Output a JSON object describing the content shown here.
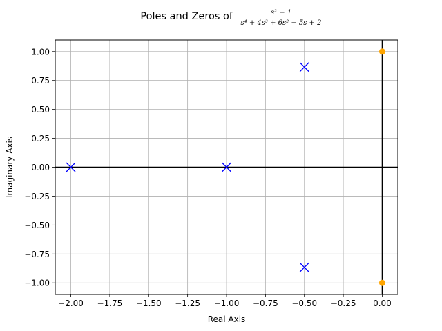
{
  "chart_data": {
    "type": "scatter",
    "title": {
      "prefix": "Poles and Zeros of",
      "numerator": "s² + 1",
      "denominator": "s⁴ + 4s³ + 6s² + 5s + 2"
    },
    "xlabel": "Real Axis",
    "ylabel": "Imaginary Axis",
    "xlim": [
      -2.1,
      0.1
    ],
    "ylim": [
      -1.1,
      1.1
    ],
    "grid": true,
    "xticks": [
      -2.0,
      -1.75,
      -1.5,
      -1.25,
      -1.0,
      -0.75,
      -0.5,
      -0.25,
      0.0
    ],
    "yticks": [
      -1.0,
      -0.75,
      -0.5,
      -0.25,
      0.0,
      0.25,
      0.5,
      0.75,
      1.0
    ],
    "series": [
      {
        "marker": "x",
        "color": "#0000ff",
        "points": [
          {
            "x": -2.0,
            "y": 0.0
          },
          {
            "x": -1.0,
            "y": 0.0
          },
          {
            "x": -0.5,
            "y": 0.866
          },
          {
            "x": -0.5,
            "y": -0.866
          }
        ]
      },
      {
        "marker": "o",
        "color": "#ffa500",
        "points": [
          {
            "x": 0.0,
            "y": 1.0
          },
          {
            "x": 0.0,
            "y": -1.0
          }
        ]
      }
    ]
  }
}
